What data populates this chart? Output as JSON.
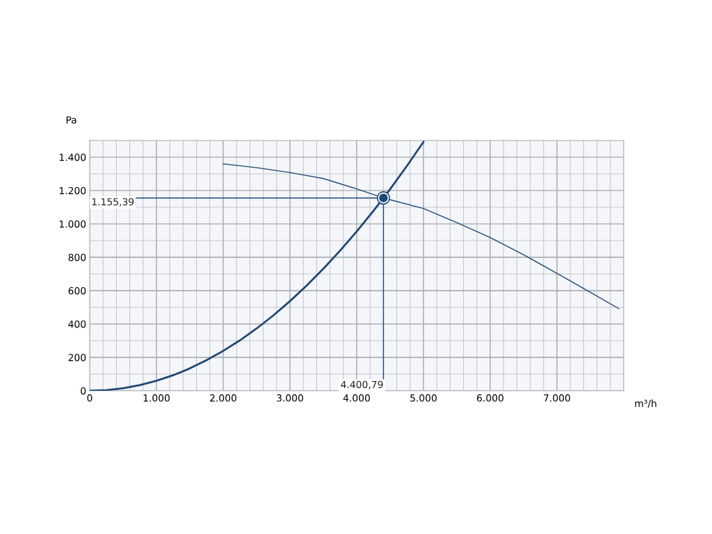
{
  "chart_data": {
    "type": "line",
    "xlabel": "m³/h",
    "ylabel": "Pa",
    "xlim": [
      0,
      8000
    ],
    "ylim": [
      0,
      1500
    ],
    "xticks": [
      0,
      {
        "value": 1000,
        "label": "1.000"
      },
      {
        "value": 2000,
        "label": "2.000"
      },
      {
        "value": 3000,
        "label": "3.000"
      },
      {
        "value": 4000,
        "label": "4.000"
      },
      {
        "value": 5000,
        "label": "5.000"
      },
      {
        "value": 6000,
        "label": "6.000"
      },
      {
        "value": 7000,
        "label": "7.000"
      }
    ],
    "yticks": [
      0,
      200,
      400,
      600,
      800,
      {
        "value": 1000,
        "label": "1.000"
      },
      {
        "value": 1200,
        "label": "1.200"
      },
      {
        "value": 1400,
        "label": "1.400"
      }
    ],
    "grid": true,
    "marker": "none",
    "line_style": "solid",
    "series": [
      {
        "color": "#1d4877",
        "x": [
          0,
          250,
          500,
          750,
          1000,
          1250,
          1500,
          1750,
          2000,
          2250,
          2500,
          2750,
          3000,
          3250,
          3500,
          3750,
          4000,
          4250,
          4500,
          4750,
          5000
        ],
        "values": [
          0,
          4,
          15,
          34,
          60,
          93,
          134,
          183,
          239,
          302,
          373,
          451,
          537,
          630,
          731,
          839,
          955,
          1078,
          1208,
          1346,
          1491
        ]
      },
      {
        "color": "#1d4877",
        "x": [
          2000,
          2500,
          3000,
          3500,
          4000,
          4400.79,
          5000,
          5500,
          6000,
          6500,
          7000,
          7500,
          7927
        ],
        "values": [
          1360,
          1337,
          1308,
          1272,
          1210,
          1155.39,
          1092,
          1008,
          918,
          815,
          704,
          590,
          492
        ]
      },
      {
        "type": "scatter",
        "color": "#1d4877",
        "marker": "circle",
        "x": [
          4400.79
        ],
        "values": [
          1155.39
        ]
      }
    ],
    "ref_lines": [
      {
        "axis": "y",
        "value": 1155.39,
        "label": "1.155,39",
        "color": "#1d4877"
      },
      {
        "axis": "x",
        "value": 4400.79,
        "label": "4.400,79",
        "color": "#1d4877"
      }
    ]
  }
}
